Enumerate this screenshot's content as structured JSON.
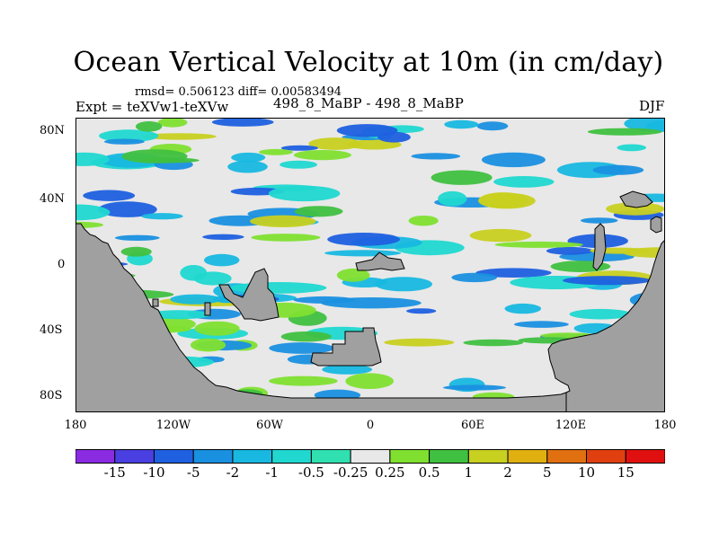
{
  "figure": {
    "title": "Ocean Vertical Velocity at 10m (in cm/day)",
    "stats": "rmsd= 0.506123  diff= 0.00583494",
    "experiment": "Expt = teXVw1-teXVw",
    "runs": "498_8_MaBP - 498_8_MaBP",
    "season": "DJF"
  },
  "map": {
    "type": "filled-contour",
    "lat_range": [
      -90,
      90
    ],
    "lon_range": [
      -180,
      180
    ],
    "y_ticks": [
      "80N",
      "40N",
      "0",
      "40S",
      "80S"
    ],
    "x_ticks": [
      "180",
      "120W",
      "60W",
      "0",
      "60E",
      "120E",
      "180"
    ],
    "land_color": "#a0a0a0",
    "ocean_neutral_color": "#e8e8e8"
  },
  "colorbar": {
    "labels": [
      "-15",
      "-10",
      "-5",
      "-2",
      "-1",
      "-0.5",
      "-0.25",
      "0.25",
      "0.5",
      "1",
      "2",
      "5",
      "10",
      "15"
    ],
    "colors": [
      "#8a2be2",
      "#4a3fe0",
      "#1f60e0",
      "#1a90e0",
      "#18b8e0",
      "#20d8d0",
      "#30e0b0",
      "#e8e8e8",
      "#80e030",
      "#40c040",
      "#c8d020",
      "#e0b010",
      "#e07010",
      "#e04010",
      "#e01010"
    ]
  }
}
